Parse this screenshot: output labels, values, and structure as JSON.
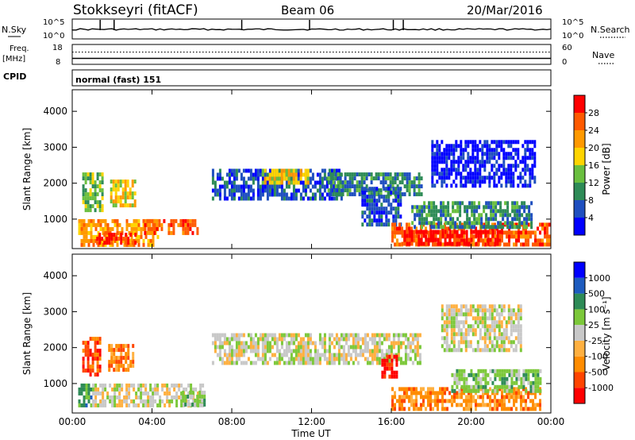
{
  "header": {
    "station": "Stokkseyri (fitACF)",
    "beam": "Beam 06",
    "date": "20/Mar/2016"
  },
  "top_panel": {
    "left_labels": {
      "nsky": "N.Sky",
      "freq_top": "Freq.",
      "freq_unit": "[MHz]",
      "cpid": "CPID"
    },
    "right_labels": {
      "nsearch": "N.Search",
      "nave": "Nave"
    },
    "nsky_ticks": [
      "10^5",
      "10^0"
    ],
    "nsearch_ticks": [
      "10^5",
      "10^0"
    ],
    "freq_ticks": [
      "18",
      "8"
    ],
    "nave_ticks": [
      "60",
      "0"
    ],
    "cpid_text": "normal (fast) 151",
    "nsky_spikes_hour": [
      1.4,
      2.1,
      8.5,
      11.9,
      16.1,
      16.6
    ],
    "freq_mhz": 11.0,
    "nave_value": 37
  },
  "colors": {
    "power": [
      "#0000ff",
      "#1f4fbf",
      "#2e8b57",
      "#6abf3f",
      "#ffd400",
      "#ff9900",
      "#ff5a00",
      "#ff0000"
    ],
    "velocity": [
      "#ff0000",
      "#ff4500",
      "#ff8c00",
      "#ffb040",
      "#c8c8c8",
      "#7cc83a",
      "#2e8b57",
      "#1e5cbf",
      "#0000ff"
    ]
  },
  "chart_data": [
    {
      "type": "heatmap",
      "name": "Power",
      "ylabel": "Slant Range [km]",
      "colorbar_label": "Power [dB]",
      "colorbar_ticks": [
        "28",
        "24",
        "20",
        "16",
        "12",
        "8",
        "4"
      ],
      "yticks": [
        "1000",
        "2000",
        "3000",
        "4000"
      ],
      "ylim": [
        180,
        4600
      ],
      "xlim_hours": [
        0,
        24
      ],
      "regions": [
        {
          "t0": 0.3,
          "t1": 4.3,
          "r0": 300,
          "r1": 1000,
          "level": 5
        },
        {
          "t0": 1.2,
          "t1": 3.2,
          "r0": 380,
          "r1": 620,
          "level": 7
        },
        {
          "t0": 0.5,
          "t1": 1.5,
          "r0": 1300,
          "r1": 2300,
          "level": 3
        },
        {
          "t0": 1.9,
          "t1": 3.1,
          "r0": 1400,
          "r1": 2100,
          "level": 4
        },
        {
          "t0": 3.6,
          "t1": 6.3,
          "r0": 650,
          "r1": 1000,
          "level": 6
        },
        {
          "t0": 7.0,
          "t1": 13.5,
          "r0": 1600,
          "r1": 2400,
          "level": 1
        },
        {
          "t0": 9.5,
          "t1": 11.8,
          "r0": 2000,
          "r1": 2400,
          "level": 4
        },
        {
          "t0": 12.8,
          "t1": 17.5,
          "r0": 1700,
          "r1": 2300,
          "level": 2
        },
        {
          "t0": 14.5,
          "t1": 16.5,
          "r0": 800,
          "r1": 1900,
          "level": 1
        },
        {
          "t0": 16.0,
          "t1": 23.9,
          "r0": 280,
          "r1": 900,
          "level": 6
        },
        {
          "t0": 16.5,
          "t1": 21.5,
          "r0": 300,
          "r1": 700,
          "level": 7
        },
        {
          "t0": 17.0,
          "t1": 23.0,
          "r0": 800,
          "r1": 1500,
          "level": 2
        },
        {
          "t0": 18.0,
          "t1": 23.2,
          "r0": 1900,
          "r1": 3200,
          "level": 0
        }
      ]
    },
    {
      "type": "heatmap",
      "name": "Velocity",
      "ylabel": "Slant Range [km]",
      "xlabel": "Time UT",
      "colorbar_label": "Velocity [m s⁻¹]",
      "colorbar_ticks": [
        "1000",
        "500",
        "100",
        "25",
        "-25",
        "-100",
        "-500",
        "-1000"
      ],
      "yticks": [
        "1000",
        "2000",
        "3000",
        "4000"
      ],
      "xticks": [
        "00:00",
        "04:00",
        "08:00",
        "12:00",
        "16:00",
        "20:00",
        "00:00"
      ],
      "ylim": [
        180,
        4600
      ],
      "xlim_hours": [
        0,
        24
      ],
      "regions": [
        {
          "t0": 0.3,
          "t1": 1.0,
          "r0": 400,
          "r1": 1000,
          "level": 6
        },
        {
          "t0": 0.5,
          "t1": 1.4,
          "r0": 1300,
          "r1": 2300,
          "level": 1
        },
        {
          "t0": 1.8,
          "t1": 3.0,
          "r0": 1400,
          "r1": 2100,
          "level": 2
        },
        {
          "t0": 1.0,
          "t1": 6.5,
          "r0": 400,
          "r1": 1000,
          "level": 4
        },
        {
          "t0": 5.5,
          "t1": 6.6,
          "r0": 450,
          "r1": 800,
          "level": 5
        },
        {
          "t0": 7.0,
          "t1": 17.5,
          "r0": 1600,
          "r1": 2400,
          "level": 4
        },
        {
          "t0": 15.5,
          "t1": 16.3,
          "r0": 1200,
          "r1": 1800,
          "level": 0
        },
        {
          "t0": 16.0,
          "t1": 23.5,
          "r0": 280,
          "r1": 900,
          "level": 2
        },
        {
          "t0": 19.0,
          "t1": 23.5,
          "r0": 800,
          "r1": 1400,
          "level": 5
        },
        {
          "t0": 18.5,
          "t1": 22.5,
          "r0": 1900,
          "r1": 3200,
          "level": 4
        }
      ]
    }
  ]
}
